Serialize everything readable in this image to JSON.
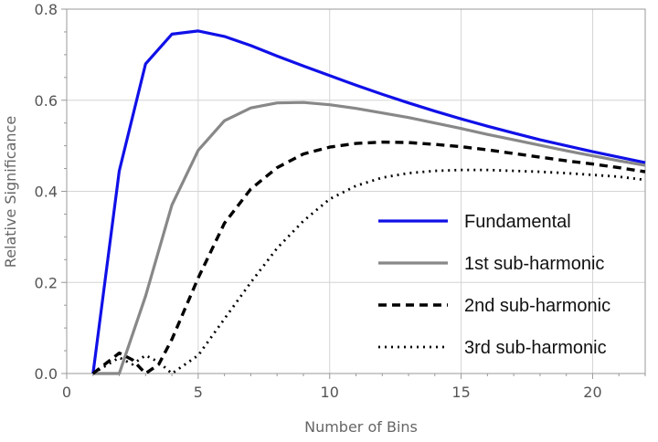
{
  "chart_data": {
    "type": "line",
    "title": "",
    "xlabel": "Number of Bins",
    "ylabel": "Relative Significance",
    "xlim": [
      0,
      22
    ],
    "ylim": [
      0,
      0.8
    ],
    "x_ticks": [
      0,
      5,
      10,
      15,
      20
    ],
    "x_tick_labels": [
      "0",
      "5",
      "10",
      "15",
      "20"
    ],
    "y_ticks": [
      0.0,
      0.2,
      0.4,
      0.6,
      0.8
    ],
    "y_tick_labels": [
      "0.0",
      "0.2",
      "0.4",
      "0.6",
      "0.8"
    ],
    "grid": true,
    "legend_position": "center-right",
    "series": [
      {
        "name": "Fundamental",
        "color": "#1010e8",
        "style": "solid",
        "points": [
          [
            1,
            0.0
          ],
          [
            2,
            0.445
          ],
          [
            3,
            0.68
          ],
          [
            4,
            0.745
          ],
          [
            5,
            0.752
          ],
          [
            6,
            0.74
          ],
          [
            7,
            0.72
          ],
          [
            8,
            0.697
          ],
          [
            9,
            0.675
          ],
          [
            10,
            0.654
          ],
          [
            11,
            0.633
          ],
          [
            12,
            0.613
          ],
          [
            13,
            0.594
          ],
          [
            14,
            0.576
          ],
          [
            15,
            0.559
          ],
          [
            16,
            0.543
          ],
          [
            17,
            0.528
          ],
          [
            18,
            0.513
          ],
          [
            19,
            0.5
          ],
          [
            20,
            0.487
          ],
          [
            21,
            0.475
          ],
          [
            22,
            0.463
          ]
        ]
      },
      {
        "name": "1st sub-harmonic",
        "color": "#888888",
        "style": "solid",
        "points": [
          [
            1,
            0.0
          ],
          [
            2,
            0.0
          ],
          [
            3,
            0.17
          ],
          [
            4,
            0.37
          ],
          [
            5,
            0.49
          ],
          [
            6,
            0.555
          ],
          [
            7,
            0.583
          ],
          [
            8,
            0.594
          ],
          [
            9,
            0.595
          ],
          [
            10,
            0.59
          ],
          [
            11,
            0.582
          ],
          [
            12,
            0.572
          ],
          [
            13,
            0.562
          ],
          [
            14,
            0.55
          ],
          [
            15,
            0.538
          ],
          [
            16,
            0.525
          ],
          [
            17,
            0.513
          ],
          [
            18,
            0.501
          ],
          [
            19,
            0.489
          ],
          [
            20,
            0.478
          ],
          [
            21,
            0.467
          ],
          [
            22,
            0.457
          ]
        ]
      },
      {
        "name": "2nd sub-harmonic",
        "color": "#000000",
        "style": "dashed",
        "points": [
          [
            1,
            0.0
          ],
          [
            2,
            0.045
          ],
          [
            2.5,
            0.03
          ],
          [
            3,
            0.0
          ],
          [
            3.5,
            0.02
          ],
          [
            4,
            0.075
          ],
          [
            5,
            0.21
          ],
          [
            6,
            0.33
          ],
          [
            7,
            0.405
          ],
          [
            8,
            0.452
          ],
          [
            9,
            0.482
          ],
          [
            10,
            0.497
          ],
          [
            11,
            0.505
          ],
          [
            12,
            0.508
          ],
          [
            13,
            0.507
          ],
          [
            14,
            0.503
          ],
          [
            15,
            0.498
          ],
          [
            16,
            0.491
          ],
          [
            17,
            0.483
          ],
          [
            18,
            0.475
          ],
          [
            19,
            0.467
          ],
          [
            20,
            0.46
          ],
          [
            21,
            0.452
          ],
          [
            22,
            0.443
          ]
        ]
      },
      {
        "name": "3rd sub-harmonic",
        "color": "#000000",
        "style": "dotted",
        "points": [
          [
            1,
            0.0
          ],
          [
            2,
            0.035
          ],
          [
            2.5,
            0.02
          ],
          [
            3,
            0.04
          ],
          [
            3.5,
            0.025
          ],
          [
            4,
            0.0
          ],
          [
            5,
            0.04
          ],
          [
            6,
            0.12
          ],
          [
            7,
            0.2
          ],
          [
            8,
            0.275
          ],
          [
            9,
            0.335
          ],
          [
            10,
            0.383
          ],
          [
            11,
            0.412
          ],
          [
            12,
            0.43
          ],
          [
            13,
            0.44
          ],
          [
            14,
            0.445
          ],
          [
            15,
            0.447
          ],
          [
            16,
            0.447
          ],
          [
            17,
            0.445
          ],
          [
            18,
            0.443
          ],
          [
            19,
            0.44
          ],
          [
            20,
            0.436
          ],
          [
            21,
            0.432
          ],
          [
            22,
            0.425
          ]
        ]
      }
    ]
  }
}
